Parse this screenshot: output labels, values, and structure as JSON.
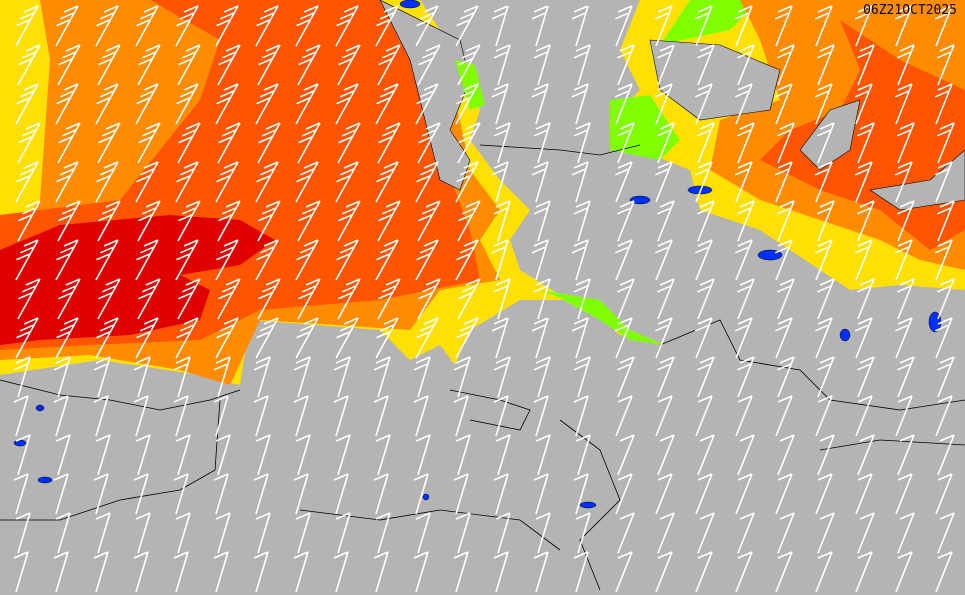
{
  "map": {
    "valid_time": "06Z21OCT2025",
    "colors": {
      "land": "#b4b4b4",
      "green": "#80ff00",
      "yellow": "#ffe000",
      "orange": "#ff8c00",
      "red_orange": "#ff5500",
      "red": "#e00000",
      "lakes": "#0030ff",
      "barbs": "#ffffff",
      "borders": "#000000"
    },
    "layers": [
      "wind-speed-shading",
      "coastlines",
      "country-borders",
      "wind-barbs"
    ]
  }
}
